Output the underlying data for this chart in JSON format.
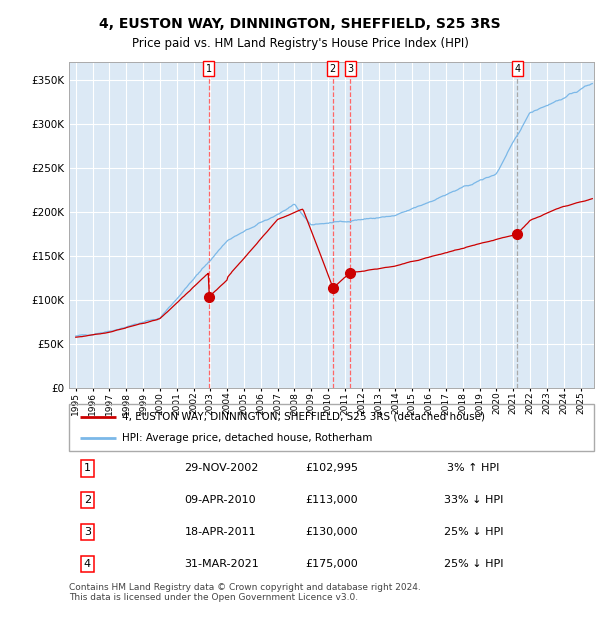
{
  "title": "4, EUSTON WAY, DINNINGTON, SHEFFIELD, S25 3RS",
  "subtitle": "Price paid vs. HM Land Registry's House Price Index (HPI)",
  "ylim": [
    0,
    370000
  ],
  "yticks": [
    0,
    50000,
    100000,
    150000,
    200000,
    250000,
    300000,
    350000
  ],
  "ytick_labels": [
    "£0",
    "£50K",
    "£100K",
    "£150K",
    "£200K",
    "£250K",
    "£300K",
    "£350K"
  ],
  "xlim_start": 1994.6,
  "xlim_end": 2025.8,
  "xtick_years": [
    1995,
    1996,
    1997,
    1998,
    1999,
    2000,
    2001,
    2002,
    2003,
    2004,
    2005,
    2006,
    2007,
    2008,
    2009,
    2010,
    2011,
    2012,
    2013,
    2014,
    2015,
    2016,
    2017,
    2018,
    2019,
    2020,
    2021,
    2022,
    2023,
    2024,
    2025
  ],
  "bg_color": "#dce9f5",
  "grid_color": "#ffffff",
  "hpi_line_color": "#7bb8e8",
  "price_line_color": "#cc0000",
  "sale_marker_color": "#cc0000",
  "vline_color": "#ff6666",
  "sales": [
    {
      "num": 1,
      "year": 2002.91,
      "price": 102995
    },
    {
      "num": 2,
      "year": 2010.27,
      "price": 113000
    },
    {
      "num": 3,
      "year": 2011.3,
      "price": 130000
    },
    {
      "num": 4,
      "year": 2021.25,
      "price": 175000
    }
  ],
  "legend_line1": "4, EUSTON WAY, DINNINGTON, SHEFFIELD, S25 3RS (detached house)",
  "legend_line2": "HPI: Average price, detached house, Rotherham",
  "table_rows": [
    {
      "num": "1",
      "date": "29-NOV-2002",
      "price": "£102,995",
      "hpi": "3% ↑ HPI"
    },
    {
      "num": "2",
      "date": "09-APR-2010",
      "price": "£113,000",
      "hpi": "33% ↓ HPI"
    },
    {
      "num": "3",
      "date": "18-APR-2011",
      "price": "£130,000",
      "hpi": "25% ↓ HPI"
    },
    {
      "num": "4",
      "date": "31-MAR-2021",
      "price": "£175,000",
      "hpi": "25% ↓ HPI"
    }
  ],
  "footer": "Contains HM Land Registry data © Crown copyright and database right 2024.\nThis data is licensed under the Open Government Licence v3.0."
}
